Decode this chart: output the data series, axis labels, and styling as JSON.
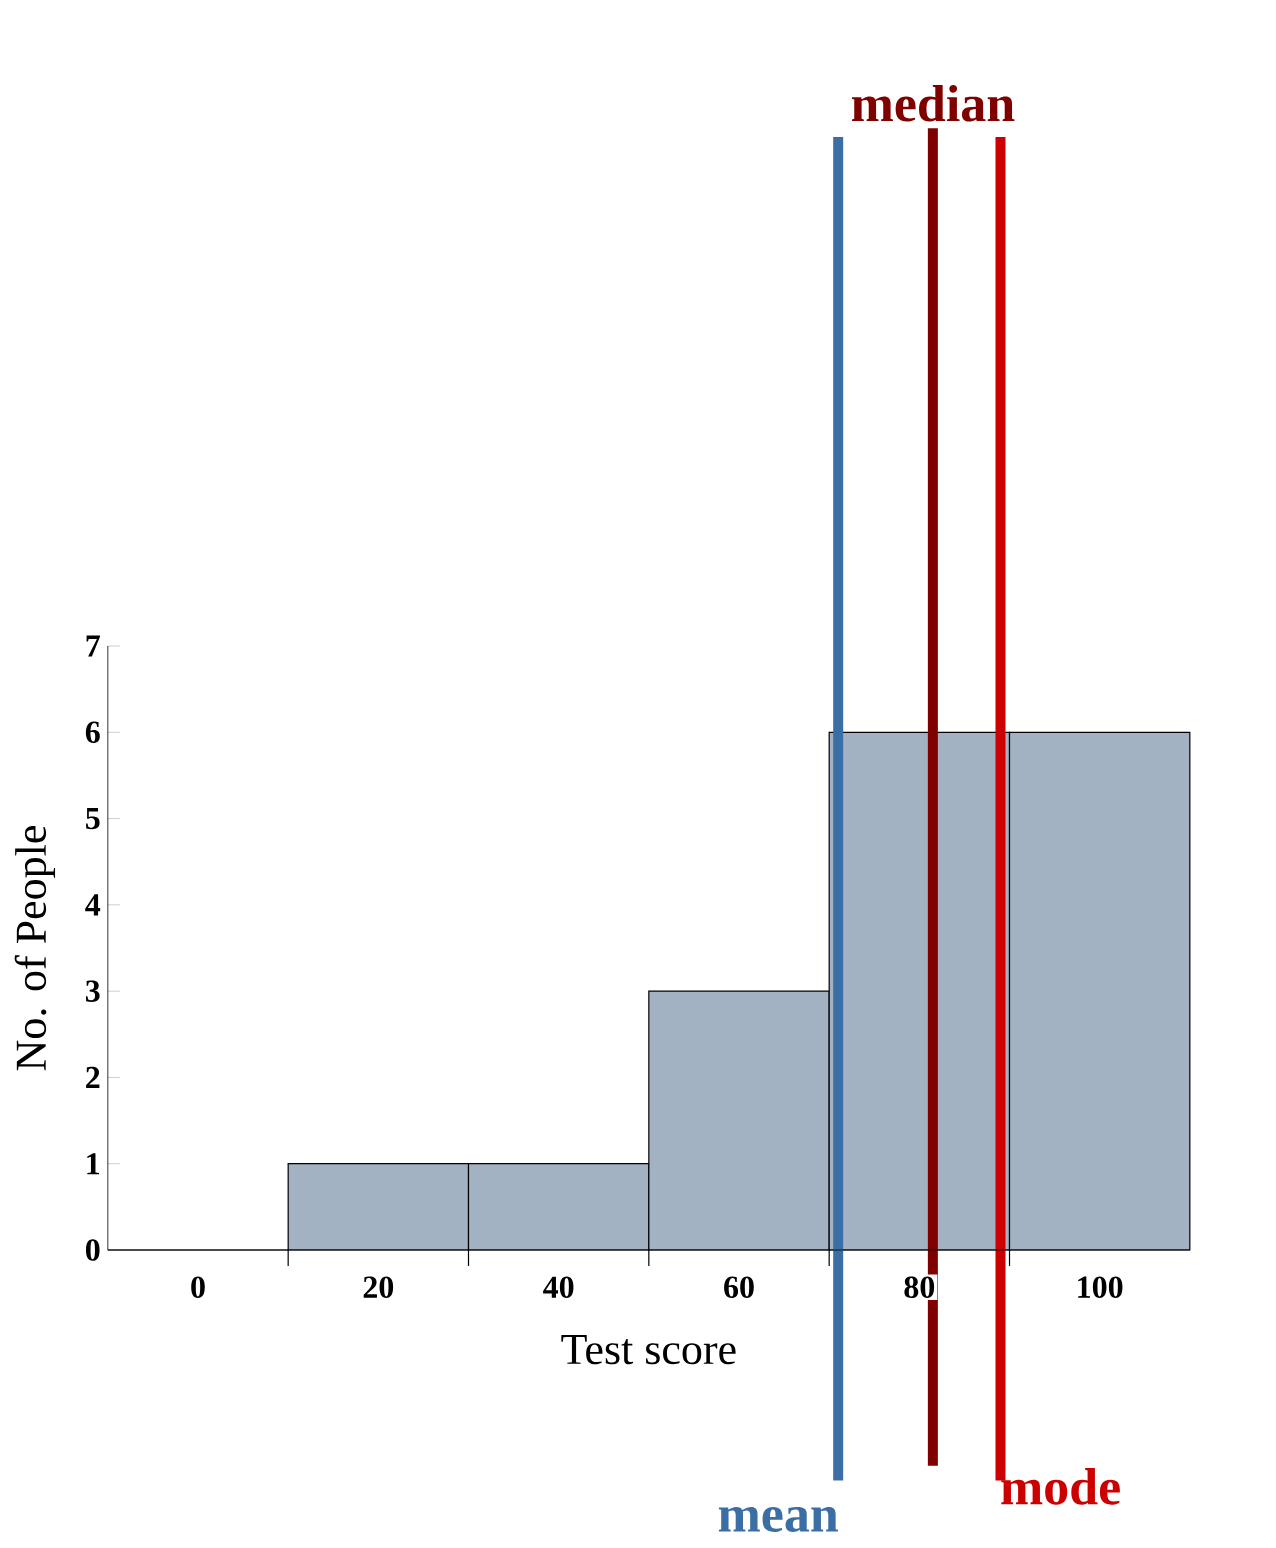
{
  "chart_data": {
    "type": "histogram",
    "xlabel": "Test score",
    "ylabel": "No. of People",
    "bins": [
      -10,
      10,
      30,
      50,
      70,
      90,
      110
    ],
    "values": [
      0,
      1,
      1,
      3,
      6,
      6
    ],
    "color": "#a3b2c2",
    "xlim": [
      -10,
      110
    ],
    "ylim": [
      0,
      7
    ],
    "xticks": [
      0,
      20,
      40,
      60,
      80,
      100,
      {
        "value": 10,
        "label": null
      },
      {
        "value": 30,
        "label": null
      },
      {
        "value": 50,
        "label": null
      },
      {
        "value": 70,
        "label": null
      },
      {
        "value": 90,
        "label": null
      }
    ],
    "yticks": [
      0,
      1,
      2,
      3,
      4,
      5,
      6,
      7
    ],
    "ref_lines": [
      {
        "axis": "x",
        "value": 71,
        "label": "mean",
        "color": "#3a6ea5"
      },
      {
        "axis": "x",
        "value": 81.5,
        "label": "median",
        "color": "#800000"
      },
      {
        "axis": "x",
        "value": 89,
        "label": "mode",
        "color": "#cc0000"
      }
    ]
  }
}
